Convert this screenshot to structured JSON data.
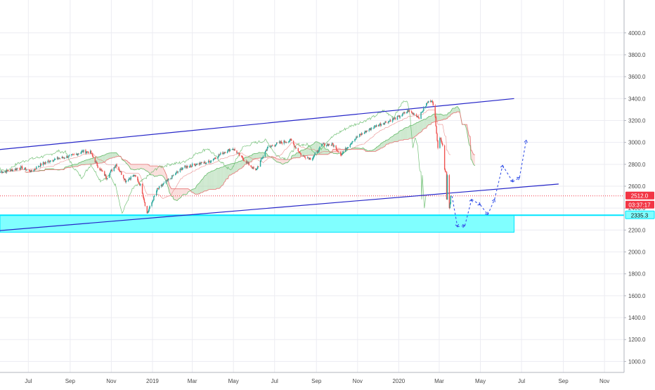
{
  "chart_data": {
    "type": "candlestick",
    "title": "",
    "xlabel": "",
    "ylabel": "",
    "ylim": [
      900,
      4300
    ],
    "xlim": [
      "2018-05-20",
      "2020-11-30"
    ],
    "y_scale": "linear",
    "grid": true,
    "y_ticks": [
      1000,
      1200,
      1400,
      1600,
      1800,
      2000,
      2200,
      2400,
      2600,
      2800,
      3000,
      3200,
      3400,
      3600,
      3800,
      4000
    ],
    "y_tick_labels": [
      "1000.0",
      "1200.0",
      "1400.0",
      "1600.0",
      "1800.0",
      "2000.0",
      "2200.0",
      "2400.0",
      "2600.0",
      "2800.0",
      "3000.0",
      "3200.0",
      "3400.0",
      "3600.0",
      "3800.0",
      "4000.0"
    ],
    "x_ticks": [
      {
        "label": "Jul",
        "date": "2018-07-01"
      },
      {
        "label": "Sep",
        "date": "2018-09-01"
      },
      {
        "label": "Nov",
        "date": "2018-11-01"
      },
      {
        "label": "2019",
        "date": "2019-01-01"
      },
      {
        "label": "Mar",
        "date": "2019-03-01"
      },
      {
        "label": "May",
        "date": "2019-05-01"
      },
      {
        "label": "Jul",
        "date": "2019-07-01"
      },
      {
        "label": "Sep",
        "date": "2019-09-01"
      },
      {
        "label": "Nov",
        "date": "2019-11-01"
      },
      {
        "label": "2020",
        "date": "2020-01-01"
      },
      {
        "label": "Mar",
        "date": "2020-03-01"
      },
      {
        "label": "May",
        "date": "2020-05-01"
      },
      {
        "label": "Jul",
        "date": "2020-07-01"
      },
      {
        "label": "Sep",
        "date": "2020-09-01"
      },
      {
        "label": "Nov",
        "date": "2020-11-01"
      }
    ],
    "price_path": [
      [
        "2018-05-21",
        2730
      ],
      [
        "2018-06-05",
        2745
      ],
      [
        "2018-06-20",
        2770
      ],
      [
        "2018-07-05",
        2735
      ],
      [
        "2018-07-20",
        2800
      ],
      [
        "2018-08-05",
        2840
      ],
      [
        "2018-08-20",
        2860
      ],
      [
        "2018-09-05",
        2880
      ],
      [
        "2018-09-20",
        2920
      ],
      [
        "2018-10-01",
        2910
      ],
      [
        "2018-10-12",
        2780
      ],
      [
        "2018-10-25",
        2680
      ],
      [
        "2018-11-08",
        2800
      ],
      [
        "2018-11-22",
        2650
      ],
      [
        "2018-12-05",
        2700
      ],
      [
        "2018-12-15",
        2600
      ],
      [
        "2018-12-24",
        2350
      ],
      [
        "2019-01-08",
        2570
      ],
      [
        "2019-01-25",
        2660
      ],
      [
        "2019-02-15",
        2770
      ],
      [
        "2019-03-05",
        2800
      ],
      [
        "2019-03-25",
        2820
      ],
      [
        "2019-04-15",
        2905
      ],
      [
        "2019-04-30",
        2945
      ],
      [
        "2019-05-15",
        2850
      ],
      [
        "2019-06-03",
        2740
      ],
      [
        "2019-06-20",
        2950
      ],
      [
        "2019-07-05",
        2990
      ],
      [
        "2019-07-25",
        3020
      ],
      [
        "2019-08-10",
        2880
      ],
      [
        "2019-08-25",
        2850
      ],
      [
        "2019-09-10",
        2980
      ],
      [
        "2019-09-25",
        2980
      ],
      [
        "2019-10-08",
        2890
      ],
      [
        "2019-10-25",
        3020
      ],
      [
        "2019-11-10",
        3090
      ],
      [
        "2019-11-28",
        3150
      ],
      [
        "2019-12-15",
        3190
      ],
      [
        "2019-12-31",
        3230
      ],
      [
        "2020-01-15",
        3290
      ],
      [
        "2020-01-31",
        3230
      ],
      [
        "2020-02-12",
        3360
      ],
      [
        "2020-02-19",
        3390
      ],
      [
        "2020-02-24",
        3230
      ],
      [
        "2020-02-28",
        2955
      ],
      [
        "2020-03-03",
        3050
      ],
      [
        "2020-03-06",
        2970
      ],
      [
        "2020-03-09",
        2750
      ],
      [
        "2020-03-11",
        2740
      ],
      [
        "2020-03-12",
        2480
      ],
      [
        "2020-03-13",
        2712
      ],
      [
        "2020-03-16",
        2400
      ],
      [
        "2020-03-18",
        2512
      ]
    ],
    "current_price": {
      "label": "2512.0",
      "value": 2512
    },
    "countdown_label": "03:37:17",
    "support_zone": {
      "label": "2335.3",
      "top": 2335.3,
      "bottom": 2180,
      "from": "2018-05-20",
      "to": "2020-06-20"
    },
    "channel_upper": [
      [
        "2018-05-20",
        2935
      ],
      [
        "2020-06-20",
        3400
      ]
    ],
    "channel_lower": [
      [
        "2018-05-20",
        2195
      ],
      [
        "2020-08-25",
        2620
      ]
    ],
    "projection_path": [
      [
        "2020-03-20",
        2510
      ],
      [
        "2020-03-28",
        2230
      ],
      [
        "2020-04-08",
        2240
      ],
      [
        "2020-04-18",
        2480
      ],
      [
        "2020-05-01",
        2430
      ],
      [
        "2020-05-12",
        2340
      ],
      [
        "2020-05-22",
        2480
      ],
      [
        "2020-06-03",
        2790
      ],
      [
        "2020-06-18",
        2640
      ],
      [
        "2020-06-28",
        2680
      ],
      [
        "2020-07-08",
        3020
      ]
    ],
    "colors": {
      "up_candle": "#26a69a",
      "down_candle": "#ef5350",
      "channel_line": "#2626c8",
      "current_price_line": "#f23645",
      "support_zone_fill": "#80ffff",
      "support_zone_edge": "#00e5ff",
      "projection": "#3a56e8",
      "cloud_green": "#a5d6a7",
      "cloud_red": "#f5c2c0",
      "cloud_line_green": "#66bb6a",
      "cloud_line_red": "#e57373",
      "grid": "#ececf2",
      "axis_text": "#4a4a4a"
    }
  }
}
